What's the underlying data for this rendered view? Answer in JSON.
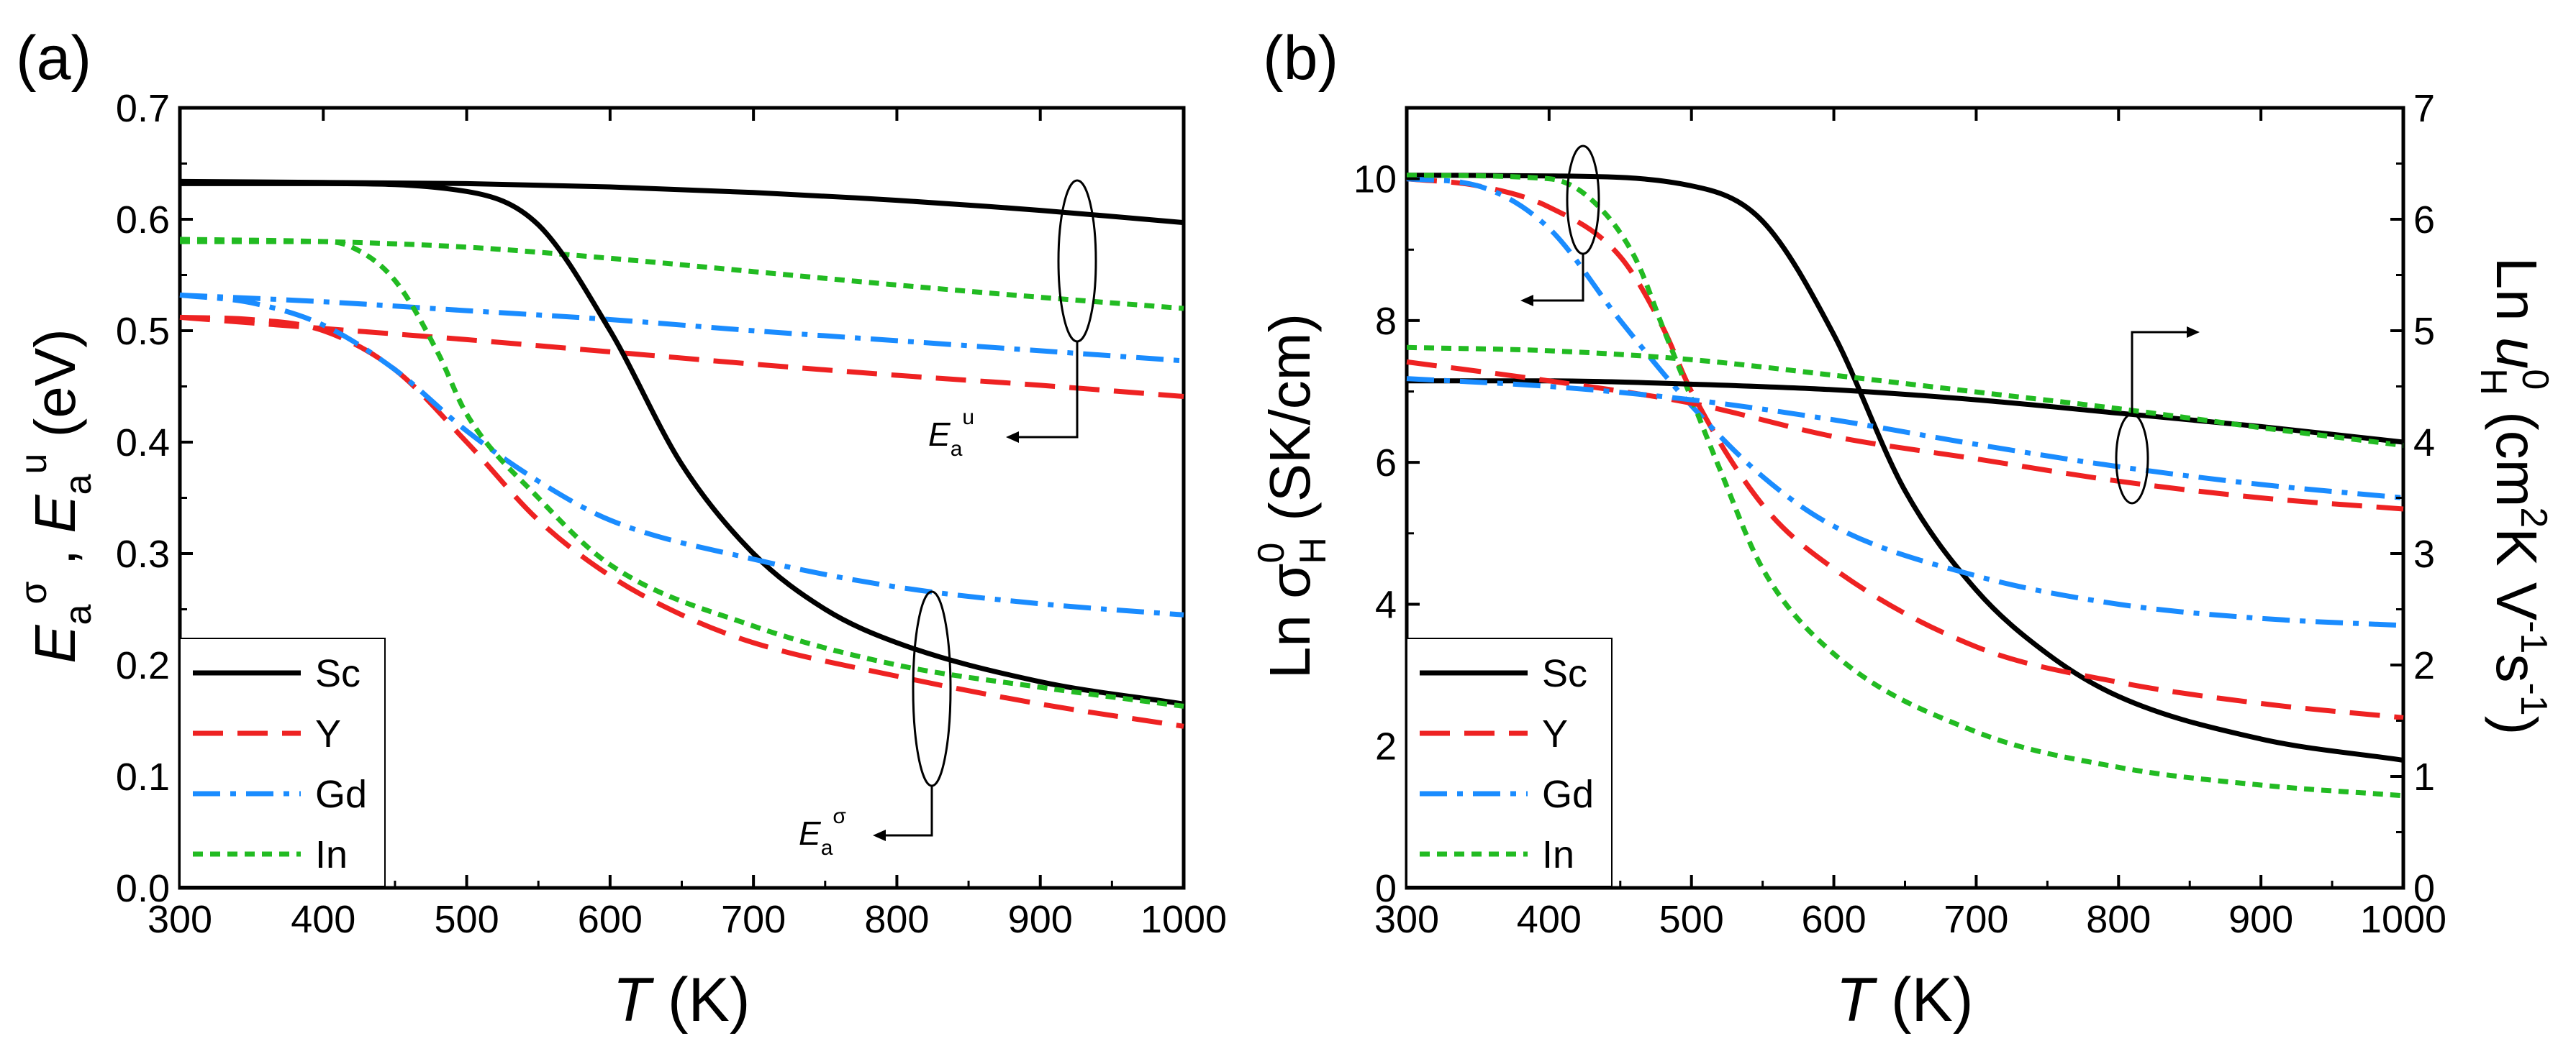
{
  "figure": {
    "panels": [
      {
        "label": "(a)",
        "xlabel_var": "T",
        "xlabel_unit": " (K)",
        "ylabel": {
          "E": "E",
          "a": "a",
          "sigma": "σ",
          "comma": " , ",
          "u": "u",
          "unit": " (eV)"
        },
        "xticks": [
          "300",
          "400",
          "500",
          "600",
          "700",
          "800",
          "900",
          "1000"
        ],
        "yticks": [
          "0.0",
          "0.1",
          "0.2",
          "0.3",
          "0.4",
          "0.5",
          "0.6",
          "0.7"
        ],
        "annotations": [
          {
            "E": "E",
            "sub": "a",
            "sup": "u"
          },
          {
            "E": "E",
            "sub": "a",
            "sup": "σ"
          }
        ]
      },
      {
        "label": "(b)",
        "xlabel_var": "T",
        "xlabel_unit": " (K)",
        "ylabel_left": {
          "ln": "Ln σ",
          "sup": "0",
          "sub": "H",
          "unit": " (SK/cm)"
        },
        "ylabel_right": {
          "ln": "Ln ",
          "u": "u",
          "sup": "0",
          "sub": "H",
          "unit_a": " (cm",
          "two": "2",
          "unit_b": "K V",
          "m1a": "-1",
          "unit_c": "s",
          "m1b": "-1",
          "unit_d": ")"
        },
        "xticks": [
          "300",
          "400",
          "500",
          "600",
          "700",
          "800",
          "900",
          "1000"
        ],
        "yticks_left": [
          "0",
          "2",
          "4",
          "6",
          "8",
          "10"
        ],
        "yticks_right": [
          "0",
          "1",
          "2",
          "3",
          "4",
          "5",
          "6",
          "7"
        ]
      }
    ],
    "legend": [
      {
        "name": "Sc",
        "color": "#000000",
        "dash": "solid"
      },
      {
        "name": "Y",
        "color": "#ee2222",
        "dash": "dash"
      },
      {
        "name": "Gd",
        "color": "#1a8cff",
        "dash": "dashdot"
      },
      {
        "name": "In",
        "color": "#22bb22",
        "dash": "dot"
      }
    ]
  },
  "chart_data": [
    {
      "type": "line",
      "title": "(a)",
      "xlabel": "T (K)",
      "ylabel": "E_a^σ , E_a^u (eV)",
      "xlim": [
        300,
        1000
      ],
      "ylim": [
        0,
        0.7
      ],
      "series": [
        {
          "name": "Sc",
          "group": "E_a^u",
          "x": [
            300,
            400,
            500,
            600,
            700,
            800,
            900,
            1000
          ],
          "y": [
            0.634,
            0.633,
            0.632,
            0.629,
            0.624,
            0.617,
            0.608,
            0.597
          ]
        },
        {
          "name": "Y",
          "group": "E_a^u",
          "x": [
            300,
            400,
            500,
            600,
            700,
            800,
            900,
            1000
          ],
          "y": [
            0.512,
            0.502,
            0.492,
            0.481,
            0.47,
            0.46,
            0.451,
            0.441
          ]
        },
        {
          "name": "Gd",
          "group": "E_a^u",
          "x": [
            300,
            400,
            500,
            600,
            700,
            800,
            900,
            1000
          ],
          "y": [
            0.532,
            0.526,
            0.518,
            0.51,
            0.5,
            0.491,
            0.482,
            0.473
          ]
        },
        {
          "name": "In",
          "group": "E_a^u",
          "x": [
            300,
            400,
            500,
            600,
            700,
            800,
            900,
            1000
          ],
          "y": [
            0.582,
            0.58,
            0.575,
            0.565,
            0.553,
            0.541,
            0.53,
            0.52
          ]
        },
        {
          "name": "Sc",
          "group": "E_a^σ",
          "x": [
            300,
            400,
            500,
            550,
            600,
            650,
            700,
            750,
            800,
            900,
            1000
          ],
          "y": [
            0.632,
            0.632,
            0.625,
            0.595,
            0.5,
            0.38,
            0.3,
            0.25,
            0.22,
            0.185,
            0.165
          ]
        },
        {
          "name": "Y",
          "group": "E_a^σ",
          "x": [
            300,
            350,
            400,
            450,
            500,
            550,
            600,
            650,
            700,
            800,
            900,
            1000
          ],
          "y": [
            0.512,
            0.51,
            0.5,
            0.465,
            0.4,
            0.33,
            0.28,
            0.245,
            0.22,
            0.19,
            0.165,
            0.145
          ]
        },
        {
          "name": "Gd",
          "group": "E_a^σ",
          "x": [
            300,
            350,
            400,
            450,
            500,
            550,
            600,
            700,
            800,
            900,
            1000
          ],
          "y": [
            0.532,
            0.525,
            0.505,
            0.465,
            0.41,
            0.365,
            0.33,
            0.295,
            0.27,
            0.255,
            0.245
          ]
        },
        {
          "name": "In",
          "group": "E_a^σ",
          "x": [
            300,
            400,
            420,
            450,
            480,
            500,
            550,
            600,
            700,
            800,
            900,
            1000
          ],
          "y": [
            0.58,
            0.58,
            0.575,
            0.545,
            0.48,
            0.425,
            0.35,
            0.29,
            0.235,
            0.2,
            0.18,
            0.163
          ]
        }
      ],
      "annotations": [
        "E_a^u",
        "E_a^σ"
      ]
    },
    {
      "type": "line",
      "title": "(b)",
      "xlabel": "T (K)",
      "ylabel": "Ln σ_H^0 (SK/cm)",
      "ylabel_right": "Ln u_H^0 (cm^2K V^-1s^-1)",
      "xlim": [
        300,
        1000
      ],
      "ylim": [
        0,
        11
      ],
      "ylim_right": [
        0,
        7
      ],
      "series": [
        {
          "name": "Sc",
          "axis": "left",
          "quantity": "Ln σ_H^0",
          "x": [
            300,
            400,
            500,
            550,
            600,
            650,
            700,
            750,
            800,
            900,
            1000
          ],
          "y": [
            10.05,
            10.04,
            9.9,
            9.4,
            7.8,
            5.6,
            4.2,
            3.3,
            2.7,
            2.1,
            1.8
          ]
        },
        {
          "name": "Y",
          "axis": "left",
          "quantity": "Ln σ_H^0",
          "x": [
            300,
            350,
            400,
            450,
            480,
            500,
            550,
            600,
            700,
            800,
            900,
            1000
          ],
          "y": [
            10.0,
            9.9,
            9.6,
            8.9,
            7.9,
            7.0,
            5.4,
            4.5,
            3.4,
            2.9,
            2.6,
            2.4
          ]
        },
        {
          "name": "Gd",
          "axis": "left",
          "quantity": "Ln σ_H^0",
          "x": [
            300,
            350,
            400,
            450,
            500,
            550,
            600,
            700,
            800,
            900,
            1000
          ],
          "y": [
            10.0,
            9.9,
            9.3,
            8.0,
            6.8,
            5.8,
            5.1,
            4.4,
            4.0,
            3.8,
            3.7
          ]
        },
        {
          "name": "In",
          "axis": "left",
          "quantity": "Ln σ_H^0",
          "x": [
            300,
            400,
            430,
            460,
            480,
            500,
            520,
            550,
            600,
            700,
            800,
            900,
            1000
          ],
          "y": [
            10.05,
            10.0,
            9.7,
            8.9,
            7.9,
            6.9,
            5.9,
            4.5,
            3.3,
            2.2,
            1.7,
            1.45,
            1.3
          ]
        },
        {
          "name": "Sc",
          "axis": "right",
          "quantity": "Ln u_H^0",
          "x": [
            300,
            400,
            500,
            600,
            700,
            800,
            900,
            1000
          ],
          "y": [
            4.55,
            4.55,
            4.52,
            4.47,
            4.38,
            4.26,
            4.14,
            4.0
          ]
        },
        {
          "name": "Y",
          "axis": "right",
          "quantity": "Ln u_H^0",
          "x": [
            300,
            400,
            500,
            600,
            700,
            800,
            900,
            1000
          ],
          "y": [
            4.72,
            4.55,
            4.35,
            4.05,
            3.85,
            3.65,
            3.5,
            3.4
          ]
        },
        {
          "name": "Gd",
          "axis": "right",
          "quantity": "Ln u_H^0",
          "x": [
            300,
            400,
            500,
            600,
            700,
            800,
            900,
            1000
          ],
          "y": [
            4.57,
            4.5,
            4.38,
            4.2,
            3.98,
            3.78,
            3.62,
            3.5
          ]
        },
        {
          "name": "In",
          "axis": "right",
          "quantity": "Ln u_H^0",
          "x": [
            300,
            400,
            500,
            600,
            700,
            800,
            900,
            1000
          ],
          "y": [
            4.85,
            4.82,
            4.74,
            4.6,
            4.45,
            4.3,
            4.13,
            3.97
          ]
        }
      ]
    }
  ]
}
